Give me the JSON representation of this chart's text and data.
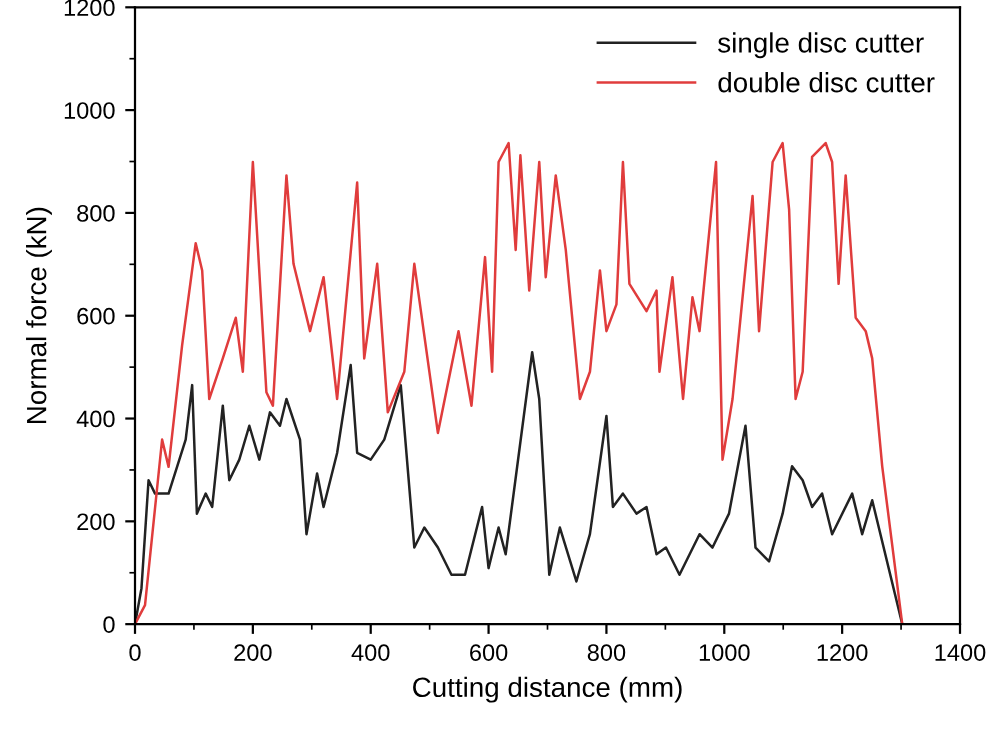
{
  "chart_data": {
    "type": "line",
    "xlabel": "Cutting distance (mm)",
    "ylabel": "Normal force (kN)",
    "xlim": [
      0,
      1400
    ],
    "ylim": [
      0,
      1200
    ],
    "xticks": [
      0,
      200,
      400,
      600,
      800,
      1000,
      1200,
      1400
    ],
    "yticks": [
      0,
      200,
      400,
      600,
      800,
      1000,
      1200
    ],
    "grid": false,
    "legend": "top right",
    "series": [
      {
        "name": "single disc cutter",
        "color": "#222222",
        "x": [
          0,
          11,
          23,
          34,
          57,
          86,
          97,
          105,
          120,
          131,
          149,
          160,
          177,
          194,
          211,
          229,
          246,
          257,
          280,
          291,
          309,
          320,
          343,
          366,
          377,
          400,
          423,
          451,
          474,
          491,
          514,
          537,
          560,
          589,
          600,
          617,
          629,
          674,
          686,
          703,
          721,
          749,
          772,
          800,
          811,
          828,
          851,
          868,
          885,
          901,
          924,
          958,
          980,
          1008,
          1036,
          1053,
          1076,
          1099,
          1115,
          1133,
          1149,
          1166,
          1183,
          1217,
          1234,
          1251,
          1302
        ],
        "values": [
          0,
          70,
          280,
          254,
          254,
          359,
          465,
          215,
          254,
          228,
          425,
          280,
          320,
          386,
          320,
          412,
          386,
          438,
          359,
          175,
          293,
          228,
          333,
          504,
          333,
          320,
          359,
          465,
          149,
          188,
          149,
          96,
          96,
          228,
          109,
          188,
          136,
          529,
          438,
          96,
          188,
          83,
          175,
          405,
          228,
          254,
          215,
          228,
          136,
          149,
          96,
          175,
          149,
          215,
          386,
          149,
          122,
          215,
          307,
          280,
          228,
          254,
          175,
          254,
          175,
          241,
          0
        ]
      },
      {
        "name": "double disc cutter",
        "color": "#e03c3c",
        "x": [
          0,
          17,
          46,
          57,
          80,
          103,
          114,
          126,
          149,
          171,
          183,
          200,
          223,
          234,
          257,
          269,
          297,
          320,
          343,
          377,
          389,
          411,
          429,
          457,
          474,
          514,
          549,
          571,
          594,
          606,
          617,
          634,
          646,
          654,
          669,
          686,
          697,
          714,
          731,
          755,
          772,
          789,
          800,
          817,
          828,
          839,
          868,
          885,
          890,
          912,
          930,
          946,
          958,
          986,
          997,
          1014,
          1048,
          1059,
          1082,
          1099,
          1110,
          1121,
          1133,
          1149,
          1172,
          1183,
          1194,
          1206,
          1223,
          1240,
          1251,
          1268,
          1302
        ],
        "values": [
          0,
          37,
          359,
          306,
          543,
          741,
          688,
          438,
          517,
          596,
          491,
          899,
          451,
          425,
          873,
          701,
          570,
          675,
          438,
          859,
          517,
          701,
          412,
          491,
          701,
          372,
          570,
          425,
          714,
          491,
          899,
          936,
          728,
          912,
          649,
          899,
          675,
          873,
          728,
          438,
          491,
          688,
          570,
          622,
          899,
          662,
          609,
          649,
          491,
          675,
          438,
          636,
          570,
          899,
          320,
          438,
          833,
          570,
          899,
          936,
          807,
          438,
          491,
          909,
          936,
          899,
          662,
          873,
          596,
          570,
          517,
          307,
          0
        ]
      }
    ]
  }
}
